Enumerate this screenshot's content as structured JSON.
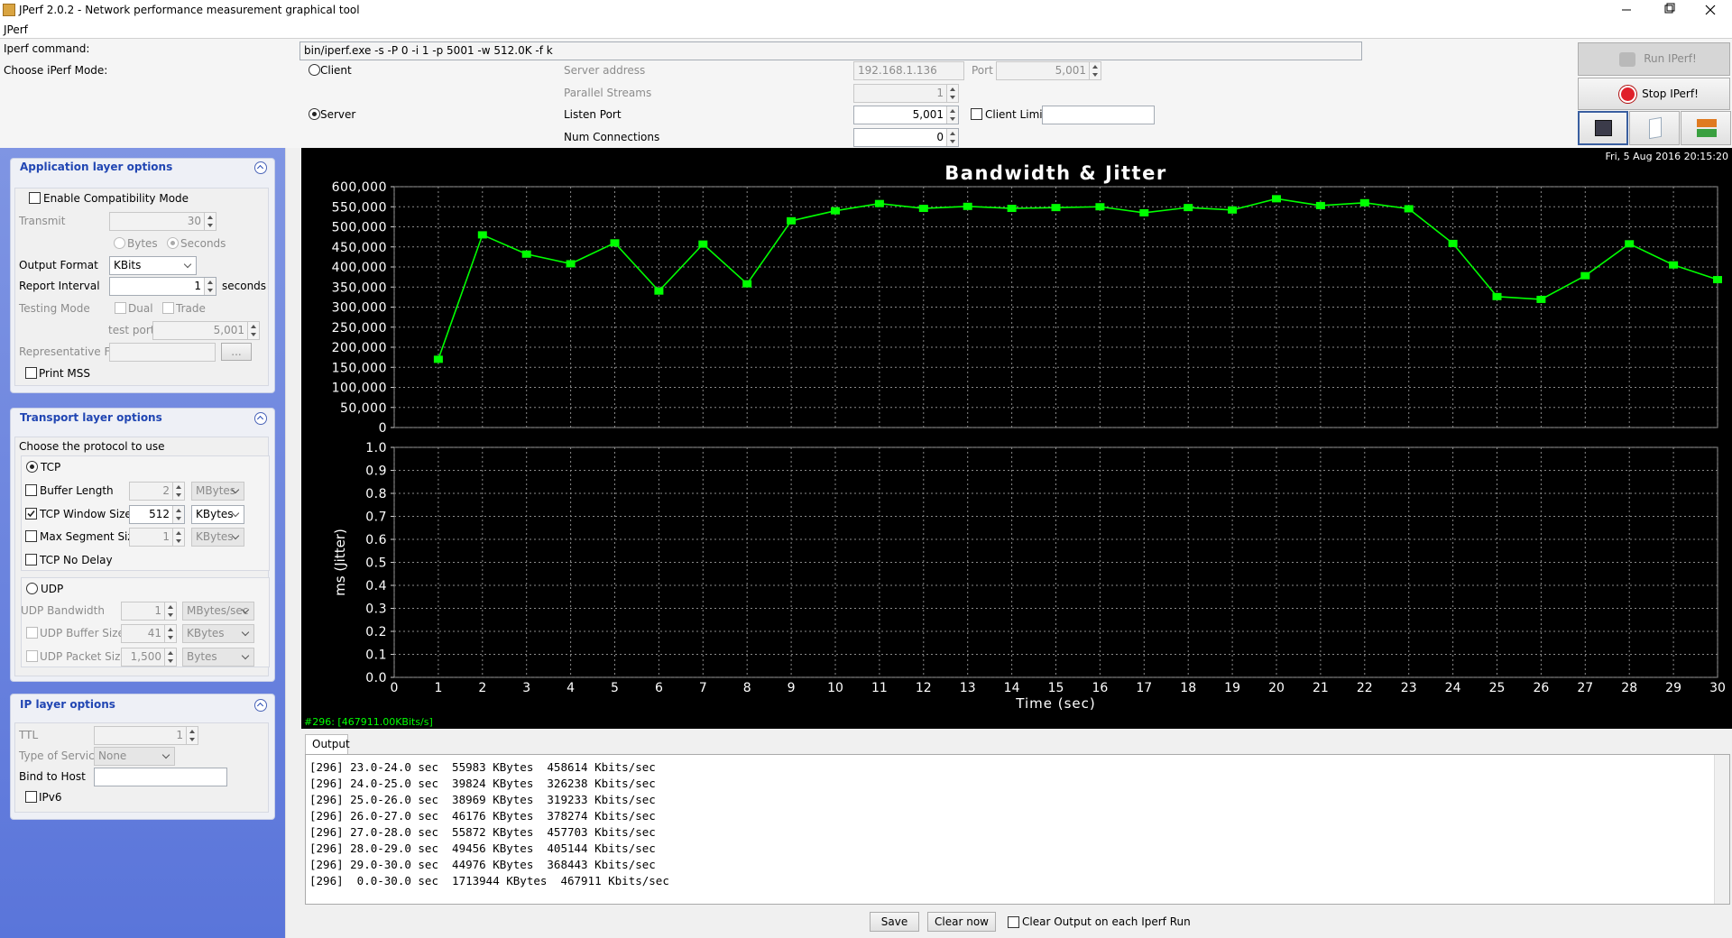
{
  "window": {
    "title": "JPerf 2.0.2 - Network performance measurement graphical tool",
    "menu": "JPerf"
  },
  "settings": {
    "command_label": "Iperf command:",
    "command": "bin/iperf.exe -s -P 0 -i 1 -p 5001 -w 512.0K -f k",
    "mode_label": "Choose iPerf Mode:",
    "client": "Client",
    "server": "Server",
    "server_address_label": "Server address",
    "server_address": "192.168.1.136",
    "port_label": "Port",
    "port": "5,001",
    "parallel_streams_label": "Parallel Streams",
    "parallel_streams": "1",
    "listen_port_label": "Listen Port",
    "listen_port": "5,001",
    "client_limit_label": "Client Limit",
    "num_connections_label": "Num Connections",
    "num_connections": "0"
  },
  "actions": {
    "run": "Run IPerf!",
    "stop": "Stop IPerf!"
  },
  "application_layer": {
    "title": "Application layer options",
    "compatibility": "Enable Compatibility Mode",
    "transmit_label": "Transmit",
    "transmit": "30",
    "bytes": "Bytes",
    "seconds": "Seconds",
    "output_format_label": "Output Format",
    "output_format": "KBits",
    "report_interval_label": "Report Interval",
    "report_interval": "1",
    "report_interval_unit": "seconds",
    "testing_mode_label": "Testing Mode",
    "dual": "Dual",
    "trade": "Trade",
    "test_port_label": "test port",
    "test_port": "5,001",
    "representative_file_label": "Representative File",
    "browse": "...",
    "print_mss": "Print MSS"
  },
  "transport_layer": {
    "title": "Transport layer options",
    "protocol_label": "Choose the protocol to use",
    "tcp": "TCP",
    "buffer_length_label": "Buffer Length",
    "buffer_length": "2",
    "buffer_length_unit": "MBytes",
    "tcp_window_size_label": "TCP Window Size",
    "tcp_window_size": "512",
    "tcp_window_size_unit": "KBytes",
    "max_segment_size_label": "Max Segment Size",
    "max_segment_size": "1",
    "max_segment_size_unit": "KBytes",
    "tcp_no_delay": "TCP No Delay",
    "udp": "UDP",
    "udp_bandwidth_label": "UDP Bandwidth",
    "udp_bandwidth": "1",
    "udp_bandwidth_unit": "MBytes/sec",
    "udp_buffer_size_label": "UDP Buffer Size",
    "udp_buffer_size": "41",
    "udp_buffer_size_unit": "KBytes",
    "udp_packet_size_label": "UDP Packet Size",
    "udp_packet_size": "1,500",
    "udp_packet_size_unit": "Bytes"
  },
  "ip_layer": {
    "title": "IP layer options",
    "ttl_label": "TTL",
    "ttl": "1",
    "tos_label": "Type of Service",
    "tos": "None",
    "bind_label": "Bind to Host",
    "ipv6": "IPv6"
  },
  "chart_data": [
    {
      "type": "line",
      "title": "Bandwidth & Jitter",
      "annotations": [
        "Fri, 5 Aug 2016 20:15:20",
        "#296: [467911.00KBits/s]"
      ],
      "x": [
        1,
        2,
        3,
        4,
        5,
        6,
        7,
        8,
        9,
        10,
        11,
        12,
        13,
        14,
        15,
        16,
        17,
        18,
        19,
        20,
        21,
        22,
        23,
        24,
        25,
        26,
        27,
        28,
        29,
        30
      ],
      "values": [
        170000,
        480000,
        432000,
        408000,
        460000,
        340000,
        457000,
        358000,
        515000,
        540000,
        558000,
        546000,
        551000,
        546000,
        548000,
        550000,
        535000,
        548000,
        542000,
        570000,
        553000,
        560000,
        545000,
        458614,
        326238,
        319233,
        378274,
        457703,
        405144,
        368443
      ],
      "color": "#00ff00",
      "xlim": [
        0,
        30
      ],
      "xticks": [
        0,
        1,
        2,
        3,
        4,
        5,
        6,
        7,
        8,
        9,
        10,
        11,
        12,
        13,
        14,
        15,
        16,
        17,
        18,
        19,
        20,
        21,
        22,
        23,
        24,
        25,
        26,
        27,
        28,
        29,
        30
      ],
      "ylim": [
        0,
        600000
      ],
      "yticks": [
        0,
        {
          "value": 50000,
          "label": "50,000"
        },
        {
          "value": 100000,
          "label": "100,000"
        },
        {
          "value": 150000,
          "label": "150,000"
        },
        {
          "value": 200000,
          "label": "200,000"
        },
        {
          "value": 250000,
          "label": "250,000"
        },
        {
          "value": 300000,
          "label": "300,000"
        },
        {
          "value": 350000,
          "label": "350,000"
        },
        {
          "value": 400000,
          "label": "400,000"
        },
        {
          "value": 450000,
          "label": "450,000"
        },
        {
          "value": 500000,
          "label": "500,000"
        },
        {
          "value": 550000,
          "label": "550,000"
        },
        {
          "value": 600000,
          "label": "600,000"
        }
      ],
      "grid": true
    },
    {
      "type": "line",
      "x_label": "Time (sec)",
      "y_label": "ms (Jitter)",
      "xlim": [
        0,
        30
      ],
      "xticks": [
        0,
        1,
        2,
        3,
        4,
        5,
        6,
        7,
        8,
        9,
        10,
        11,
        12,
        13,
        14,
        15,
        16,
        17,
        18,
        19,
        20,
        21,
        22,
        23,
        24,
        25,
        26,
        27,
        28,
        29,
        30
      ],
      "ylim": [
        0,
        1
      ],
      "yticks": [
        {
          "value": 0,
          "label": "0.0"
        },
        {
          "value": 0.1,
          "label": "0.1"
        },
        {
          "value": 0.2,
          "label": "0.2"
        },
        {
          "value": 0.3,
          "label": "0.3"
        },
        {
          "value": 0.4,
          "label": "0.4"
        },
        {
          "value": 0.5,
          "label": "0.5"
        },
        {
          "value": 0.6,
          "label": "0.6"
        },
        {
          "value": 0.7,
          "label": "0.7"
        },
        {
          "value": 0.8,
          "label": "0.8"
        },
        {
          "value": 0.9,
          "label": "0.9"
        },
        {
          "value": 1,
          "label": "1.0"
        }
      ],
      "grid": true
    }
  ],
  "output": {
    "tab": "Output",
    "lines": [
      "[296] 23.0-24.0 sec  55983 KBytes  458614 Kbits/sec",
      "[296] 24.0-25.0 sec  39824 KBytes  326238 Kbits/sec",
      "[296] 25.0-26.0 sec  38969 KBytes  319233 Kbits/sec",
      "[296] 26.0-27.0 sec  46176 KBytes  378274 Kbits/sec",
      "[296] 27.0-28.0 sec  55872 KBytes  457703 Kbits/sec",
      "[296] 28.0-29.0 sec  49456 KBytes  405144 Kbits/sec",
      "[296] 29.0-30.0 sec  44976 KBytes  368443 Kbits/sec",
      "[296]  0.0-30.0 sec  1713944 KBytes  467911 Kbits/sec"
    ],
    "save": "Save",
    "clear": "Clear now",
    "clear_each": "Clear Output on each Iperf Run"
  }
}
